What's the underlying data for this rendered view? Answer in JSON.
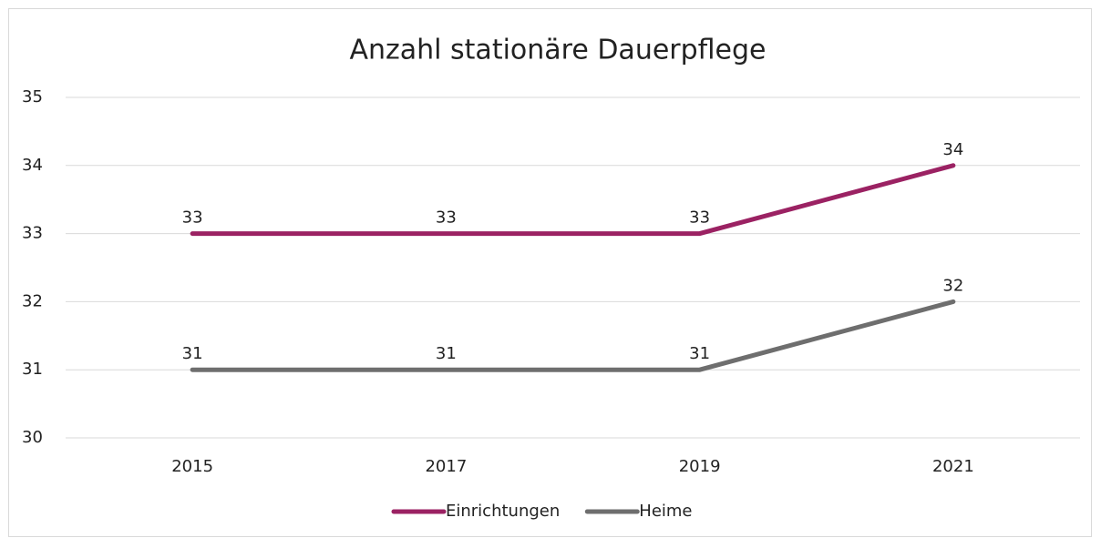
{
  "chart_data": {
    "type": "line",
    "title": "Anzahl stationäre Dauerpflege",
    "categories": [
      "2015",
      "2017",
      "2019",
      "2021"
    ],
    "series": [
      {
        "name": "Einrichtungen",
        "color": "#9b2263",
        "values": [
          33,
          33,
          33,
          34
        ]
      },
      {
        "name": "Heime",
        "color": "#6e6e6e",
        "values": [
          31,
          31,
          31,
          32
        ]
      }
    ],
    "ylim": [
      30,
      35
    ],
    "yticks": [
      30,
      31,
      32,
      33,
      34,
      35
    ],
    "grid": true,
    "legend": "bottom"
  }
}
